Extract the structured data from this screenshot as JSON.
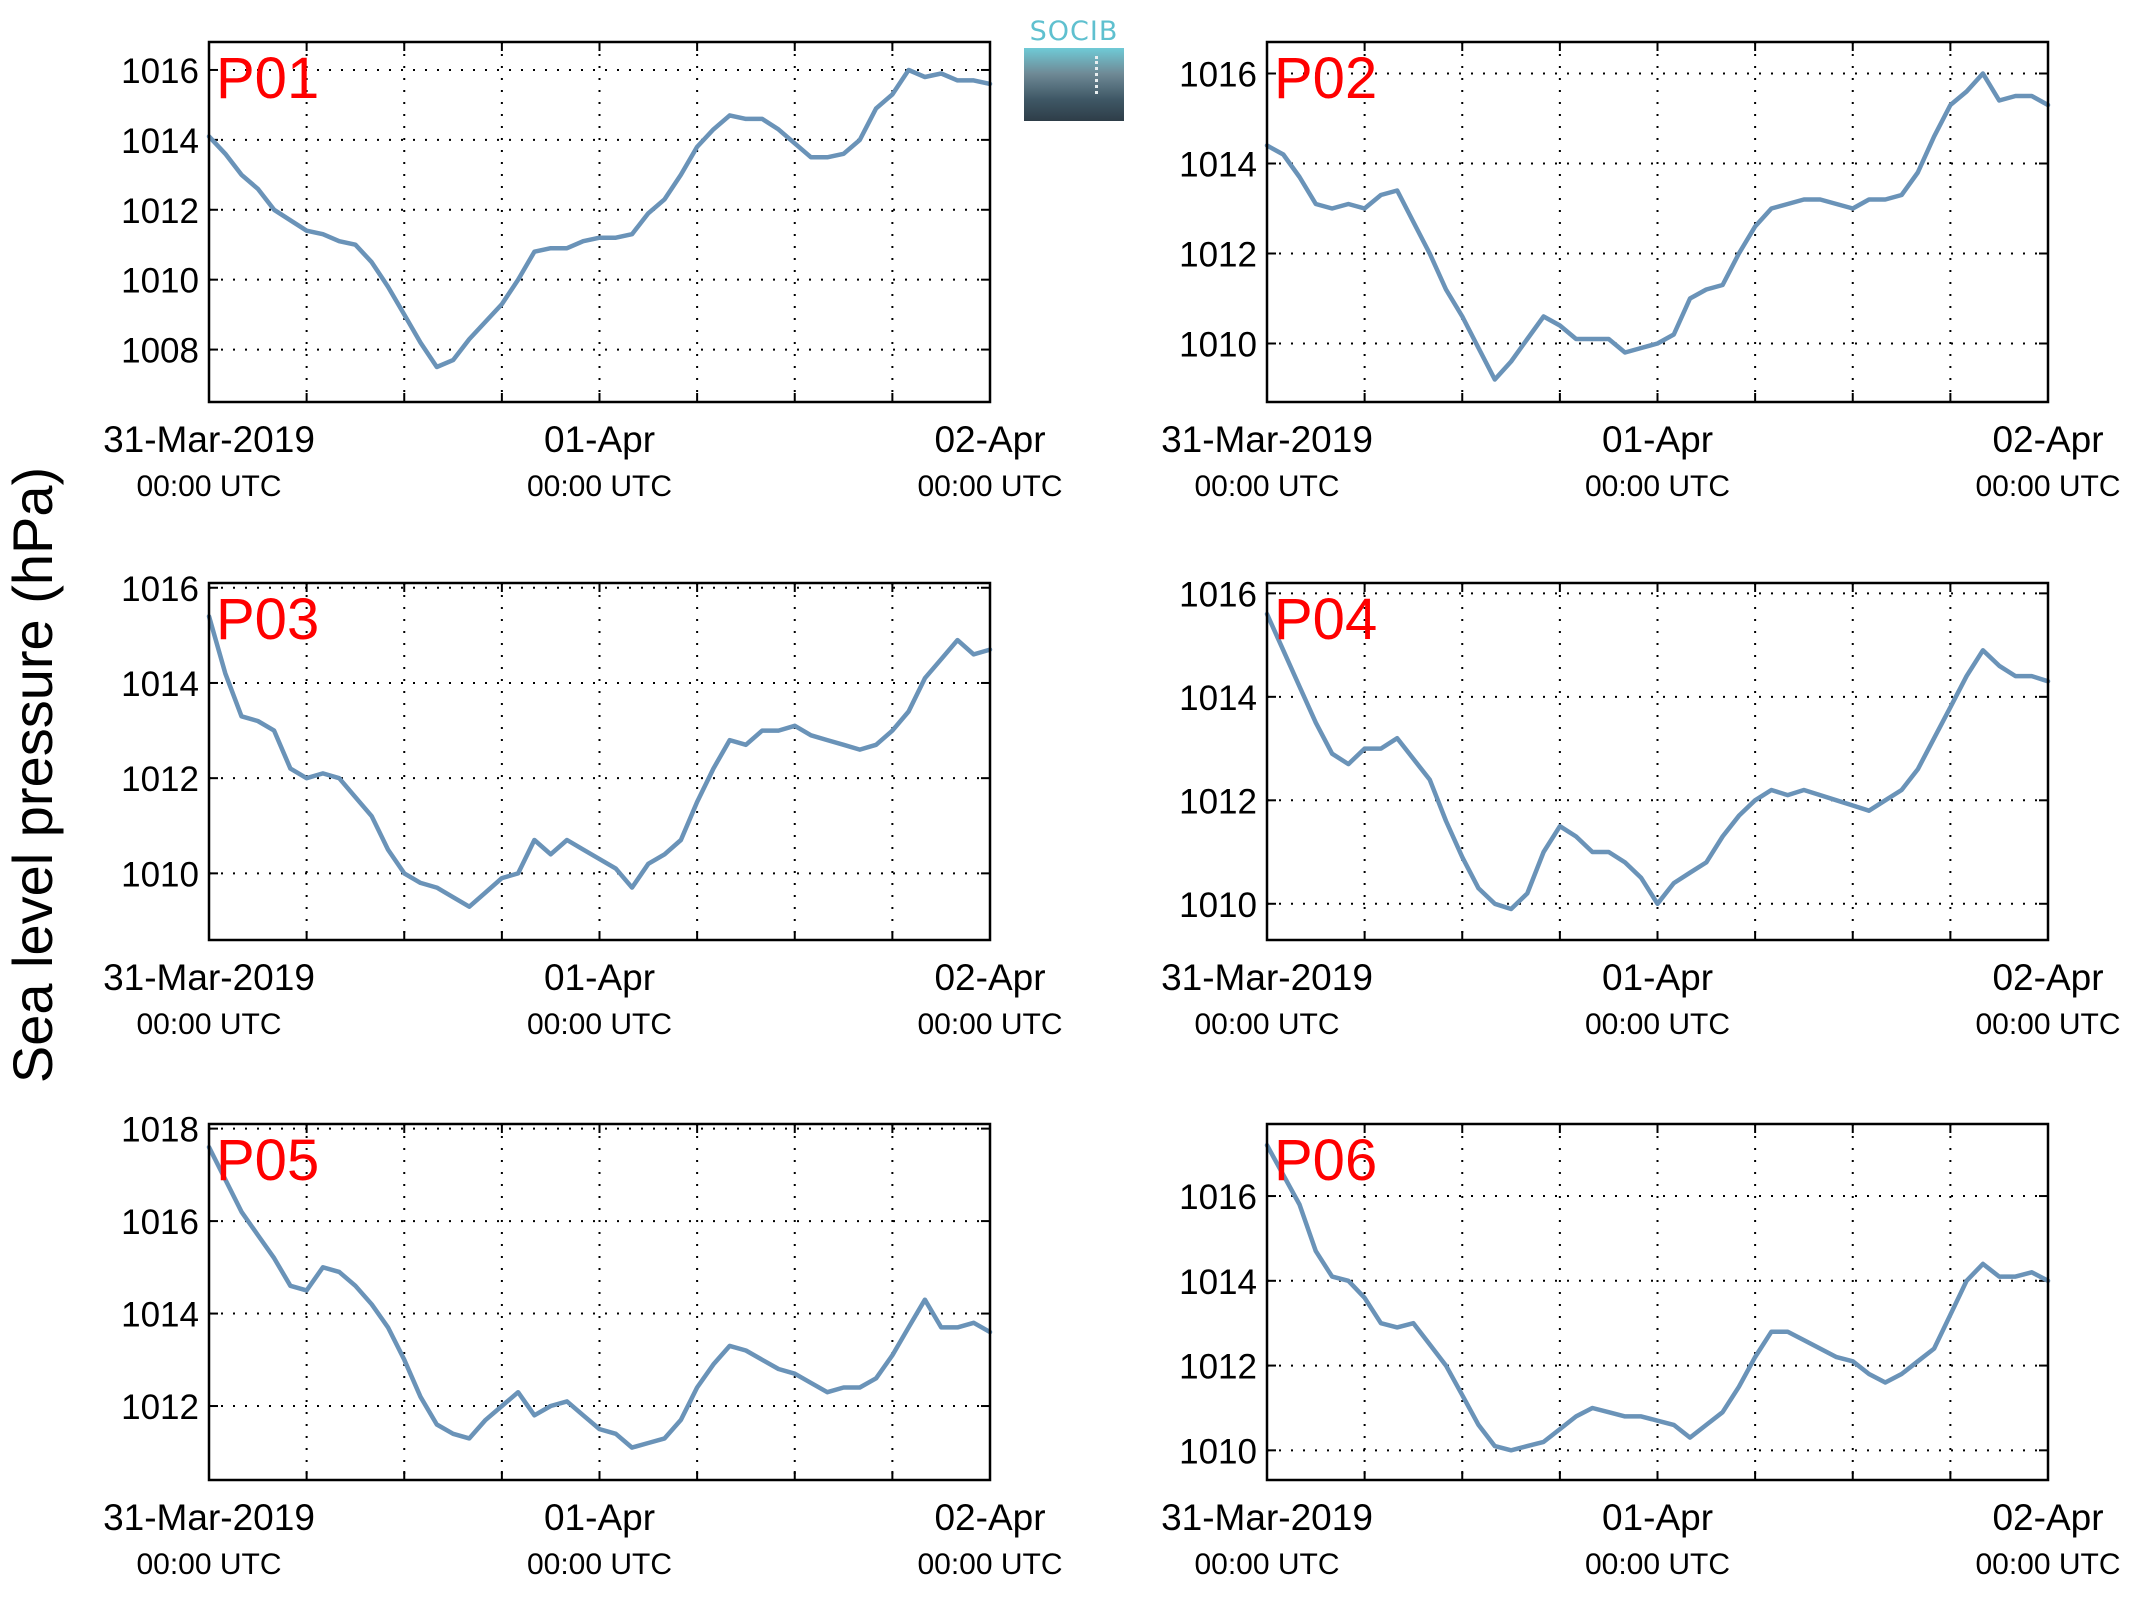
{
  "figure": {
    "ylabel": "Sea level pressure (hPa)",
    "logo_text": "SOCIB",
    "line_color": "#6a93b8",
    "panel_label_color": "#ff0000"
  },
  "chart_data": [
    {
      "type": "line",
      "label": "P01",
      "xlim": [
        0,
        48
      ],
      "ylim": [
        1006.5,
        1016.8
      ],
      "yticks": [
        1008,
        1010,
        1012,
        1014,
        1016
      ],
      "xticks": [
        {
          "t": 0,
          "label": "31-Mar-2019",
          "sub": "00:00 UTC"
        },
        {
          "t": 24,
          "label": "01-Apr",
          "sub": "00:00 UTC"
        },
        {
          "t": 48,
          "label": "02-Apr",
          "sub": "00:00 UTC"
        }
      ],
      "grid": true,
      "series": [
        {
          "x": [
            0,
            1,
            2,
            3,
            4,
            5,
            6,
            7,
            8,
            9,
            10,
            11,
            12,
            13,
            14,
            15,
            15.5,
            16,
            17,
            18,
            19,
            20,
            21,
            22,
            23,
            24,
            25,
            26,
            27,
            28,
            29,
            30,
            31,
            32,
            33,
            34,
            35,
            36,
            37,
            38,
            39,
            40,
            41,
            42,
            43,
            44,
            45,
            46,
            47,
            48
          ],
          "y": [
            1014.1,
            1013.6,
            1013.0,
            1012.6,
            1012.0,
            1011.7,
            1011.4,
            1011.3,
            1011.1,
            1011.0,
            1010.5,
            1009.8,
            1009.0,
            1008.2,
            1007.5,
            1007.7,
            1008.0,
            1008.3,
            1008.8,
            1009.3,
            1010.0,
            1010.8,
            1010.9,
            1010.9,
            1011.1,
            1011.2,
            1011.2,
            1011.3,
            1011.9,
            1012.3,
            1013.0,
            1013.8,
            1014.3,
            1014.7,
            1014.6,
            1014.6,
            1014.3,
            1013.9,
            1013.5,
            1013.5,
            1013.6,
            1014.0,
            1014.9,
            1015.3,
            1016.0,
            1015.8,
            1015.9,
            1015.7,
            1015.7,
            1015.6
          ]
        }
      ]
    },
    {
      "type": "line",
      "label": "P02",
      "xlim": [
        0,
        48
      ],
      "ylim": [
        1008.7,
        1016.7
      ],
      "yticks": [
        1010,
        1012,
        1014,
        1016
      ],
      "xticks": [
        {
          "t": 0,
          "label": "31-Mar-2019",
          "sub": "00:00 UTC"
        },
        {
          "t": 24,
          "label": "01-Apr",
          "sub": "00:00 UTC"
        },
        {
          "t": 48,
          "label": "02-Apr",
          "sub": "00:00 UTC"
        }
      ],
      "grid": true,
      "series": [
        {
          "x": [
            0,
            1,
            2,
            3,
            4,
            5,
            6,
            7,
            8,
            9,
            10,
            11,
            12,
            13,
            14,
            15,
            16,
            17,
            18,
            19,
            20,
            21,
            22,
            23,
            24,
            25,
            26,
            27,
            28,
            29,
            30,
            31,
            32,
            33,
            34,
            35,
            36,
            37,
            38,
            39,
            40,
            41,
            42,
            43,
            44,
            45,
            46,
            47,
            48
          ],
          "y": [
            1014.4,
            1014.2,
            1013.7,
            1013.1,
            1013.0,
            1013.1,
            1013.0,
            1013.3,
            1013.4,
            1012.7,
            1012.0,
            1011.2,
            1010.6,
            1009.9,
            1009.2,
            1009.6,
            1010.1,
            1010.6,
            1010.4,
            1010.1,
            1010.1,
            1010.1,
            1009.8,
            1009.9,
            1010.0,
            1010.2,
            1011.0,
            1011.2,
            1011.3,
            1012.0,
            1012.6,
            1013.0,
            1013.1,
            1013.2,
            1013.2,
            1013.1,
            1013.0,
            1013.2,
            1013.2,
            1013.3,
            1013.8,
            1014.6,
            1015.3,
            1015.6,
            1016.0,
            1015.4,
            1015.5,
            1015.5,
            1015.3
          ]
        }
      ]
    },
    {
      "type": "line",
      "label": "P03",
      "xlim": [
        0,
        48
      ],
      "ylim": [
        1008.6,
        1016.1
      ],
      "yticks": [
        1010,
        1012,
        1014,
        1016
      ],
      "xticks": [
        {
          "t": 0,
          "label": "31-Mar-2019",
          "sub": "00:00 UTC"
        },
        {
          "t": 24,
          "label": "01-Apr",
          "sub": "00:00 UTC"
        },
        {
          "t": 48,
          "label": "02-Apr",
          "sub": "00:00 UTC"
        }
      ],
      "grid": true,
      "series": [
        {
          "x": [
            0,
            1,
            2,
            3,
            4,
            5,
            6,
            7,
            8,
            9,
            10,
            11,
            12,
            13,
            14,
            15,
            16,
            17,
            18,
            19,
            20,
            21,
            22,
            23,
            24,
            25,
            26,
            27,
            28,
            29,
            30,
            31,
            32,
            33,
            34,
            35,
            36,
            37,
            38,
            39,
            40,
            41,
            42,
            43,
            44,
            45,
            46,
            47,
            48
          ],
          "y": [
            1015.4,
            1014.2,
            1013.3,
            1013.2,
            1013.0,
            1012.2,
            1012.0,
            1012.1,
            1012.0,
            1011.6,
            1011.2,
            1010.5,
            1010.0,
            1009.8,
            1009.7,
            1009.5,
            1009.3,
            1009.6,
            1009.9,
            1010.0,
            1010.7,
            1010.4,
            1010.7,
            1010.5,
            1010.3,
            1010.1,
            1009.7,
            1010.2,
            1010.4,
            1010.7,
            1011.5,
            1012.2,
            1012.8,
            1012.7,
            1013.0,
            1013.0,
            1013.1,
            1012.9,
            1012.8,
            1012.7,
            1012.6,
            1012.7,
            1013.0,
            1013.4,
            1014.1,
            1014.5,
            1014.9,
            1014.6,
            1014.7
          ]
        }
      ]
    },
    {
      "type": "line",
      "label": "P04",
      "xlim": [
        0,
        48
      ],
      "ylim": [
        1009.3,
        1016.2
      ],
      "yticks": [
        1010,
        1012,
        1014,
        1016
      ],
      "xticks": [
        {
          "t": 0,
          "label": "31-Mar-2019",
          "sub": "00:00 UTC"
        },
        {
          "t": 24,
          "label": "01-Apr",
          "sub": "00:00 UTC"
        },
        {
          "t": 48,
          "label": "02-Apr",
          "sub": "00:00 UTC"
        }
      ],
      "grid": true,
      "series": [
        {
          "x": [
            0,
            1,
            2,
            3,
            4,
            5,
            6,
            7,
            8,
            9,
            10,
            11,
            12,
            13,
            14,
            15,
            16,
            17,
            18,
            19,
            20,
            21,
            22,
            23,
            24,
            25,
            26,
            27,
            28,
            29,
            30,
            31,
            32,
            33,
            34,
            35,
            36,
            37,
            38,
            39,
            40,
            41,
            42,
            43,
            44,
            45,
            46,
            47,
            48
          ],
          "y": [
            1015.6,
            1014.9,
            1014.2,
            1013.5,
            1012.9,
            1012.7,
            1013.0,
            1013.0,
            1013.2,
            1012.8,
            1012.4,
            1011.6,
            1010.9,
            1010.3,
            1010.0,
            1009.9,
            1010.2,
            1011.0,
            1011.5,
            1011.3,
            1011.0,
            1011.0,
            1010.8,
            1010.5,
            1010.0,
            1010.4,
            1010.6,
            1010.8,
            1011.3,
            1011.7,
            1012.0,
            1012.2,
            1012.1,
            1012.2,
            1012.1,
            1012.0,
            1011.9,
            1011.8,
            1012.0,
            1012.2,
            1012.6,
            1013.2,
            1013.8,
            1014.4,
            1014.9,
            1014.6,
            1014.4,
            1014.4,
            1014.3
          ]
        }
      ]
    },
    {
      "type": "line",
      "label": "P05",
      "xlim": [
        0,
        48
      ],
      "ylim": [
        1010.4,
        1018.1
      ],
      "yticks": [
        1012,
        1014,
        1016,
        1018
      ],
      "xticks": [
        {
          "t": 0,
          "label": "31-Mar-2019",
          "sub": "00:00 UTC"
        },
        {
          "t": 24,
          "label": "01-Apr",
          "sub": "00:00 UTC"
        },
        {
          "t": 48,
          "label": "02-Apr",
          "sub": "00:00 UTC"
        }
      ],
      "grid": true,
      "series": [
        {
          "x": [
            0,
            1,
            2,
            3,
            4,
            5,
            6,
            7,
            8,
            9,
            10,
            11,
            12,
            13,
            14,
            15,
            16,
            17,
            18,
            19,
            20,
            21,
            22,
            23,
            24,
            25,
            26,
            27,
            28,
            29,
            30,
            31,
            32,
            33,
            34,
            35,
            36,
            37,
            38,
            39,
            40,
            41,
            42,
            43,
            44,
            45,
            46,
            47,
            48
          ],
          "y": [
            1017.6,
            1016.9,
            1016.2,
            1015.7,
            1015.2,
            1014.6,
            1014.5,
            1015.0,
            1014.9,
            1014.6,
            1014.2,
            1013.7,
            1013.0,
            1012.2,
            1011.6,
            1011.4,
            1011.3,
            1011.7,
            1012.0,
            1012.3,
            1011.8,
            1012.0,
            1012.1,
            1011.8,
            1011.5,
            1011.4,
            1011.1,
            1011.2,
            1011.3,
            1011.7,
            1012.4,
            1012.9,
            1013.3,
            1013.2,
            1013.0,
            1012.8,
            1012.7,
            1012.5,
            1012.3,
            1012.4,
            1012.4,
            1012.6,
            1013.1,
            1013.7,
            1014.3,
            1013.7,
            1013.7,
            1013.8,
            1013.6
          ]
        }
      ]
    },
    {
      "type": "line",
      "label": "P06",
      "xlim": [
        0,
        48
      ],
      "ylim": [
        1009.3,
        1017.7
      ],
      "yticks": [
        1010,
        1012,
        1014,
        1016
      ],
      "xticks": [
        {
          "t": 0,
          "label": "31-Mar-2019",
          "sub": "00:00 UTC"
        },
        {
          "t": 24,
          "label": "01-Apr",
          "sub": "00:00 UTC"
        },
        {
          "t": 48,
          "label": "02-Apr",
          "sub": "00:00 UTC"
        }
      ],
      "grid": true,
      "series": [
        {
          "x": [
            0,
            1,
            2,
            3,
            4,
            5,
            6,
            7,
            8,
            9,
            10,
            11,
            12,
            13,
            14,
            15,
            16,
            17,
            18,
            19,
            20,
            21,
            22,
            23,
            24,
            25,
            26,
            27,
            28,
            29,
            30,
            31,
            32,
            33,
            34,
            35,
            36,
            37,
            38,
            39,
            40,
            41,
            42,
            43,
            44,
            45,
            46,
            47,
            48
          ],
          "y": [
            1017.2,
            1016.5,
            1015.8,
            1014.7,
            1014.1,
            1014.0,
            1013.6,
            1013.0,
            1012.9,
            1013.0,
            1012.5,
            1012.0,
            1011.3,
            1010.6,
            1010.1,
            1010.0,
            1010.1,
            1010.2,
            1010.5,
            1010.8,
            1011.0,
            1010.9,
            1010.8,
            1010.8,
            1010.7,
            1010.6,
            1010.3,
            1010.6,
            1010.9,
            1011.5,
            1012.2,
            1012.8,
            1012.8,
            1012.6,
            1012.4,
            1012.2,
            1012.1,
            1011.8,
            1011.6,
            1011.8,
            1012.1,
            1012.4,
            1013.2,
            1014.0,
            1014.4,
            1014.1,
            1014.1,
            1014.2,
            1014.0
          ]
        }
      ]
    }
  ]
}
